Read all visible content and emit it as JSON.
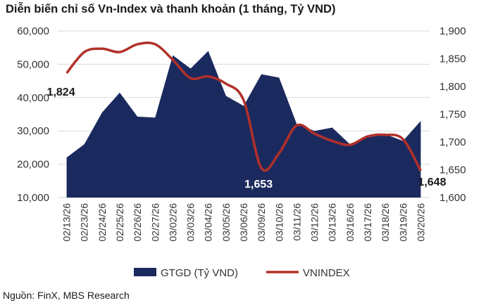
{
  "title": "Diễn biến chỉ số Vn-Index và thanh khoản (1 tháng, Tỷ VND)",
  "source": "Nguồn: FinX, MBS Research",
  "colors": {
    "area": "#1b2a5e",
    "line": "#b2302a",
    "grid": "#d9d9d9"
  },
  "chart_data": {
    "type": "area",
    "categories": [
      "02/13/26",
      "02/23/26",
      "02/24/26",
      "02/25/26",
      "02/26/26",
      "02/27/26",
      "03/02/26",
      "03/03/26",
      "03/04/26",
      "03/05/26",
      "03/06/26",
      "03/09/26",
      "03/10/26",
      "03/11/26",
      "03/12/26",
      "03/13/26",
      "03/16/26",
      "03/17/26",
      "03/18/26",
      "03/19/26",
      "03/20/26"
    ],
    "series": [
      {
        "name": "GTGD (Tỷ VND)",
        "type": "area",
        "axis": "left",
        "values": [
          22000,
          26000,
          35500,
          41500,
          34300,
          34000,
          52700,
          48700,
          54000,
          40500,
          37500,
          47000,
          46000,
          32000,
          30000,
          31000,
          26000,
          28000,
          29000,
          27000,
          33000
        ]
      },
      {
        "name": "VNINDEX",
        "type": "line",
        "axis": "right",
        "values": [
          1824,
          1862,
          1868,
          1862,
          1876,
          1876,
          1848,
          1815,
          1818,
          1805,
          1775,
          1653,
          1680,
          1730,
          1715,
          1702,
          1695,
          1710,
          1713,
          1705,
          1648
        ]
      }
    ],
    "ylim_left": [
      10000,
      60000
    ],
    "yticks_left": [
      "10,000",
      "20,000",
      "30,000",
      "40,000",
      "50,000",
      "60,000"
    ],
    "ylim_right": [
      1600,
      1900
    ],
    "yticks_right": [
      "1,600",
      "1,650",
      "1,700",
      "1,750",
      "1,800",
      "1,850",
      "1,900"
    ],
    "grid": true,
    "legend_position": "bottom",
    "annotations": [
      {
        "index": 0,
        "text": "1,824",
        "color": "#1a1a1a"
      },
      {
        "index": 11,
        "text": "1,653",
        "color": "#ffffff"
      },
      {
        "index": 20,
        "text": "1,648",
        "color": "#1a1a1a"
      }
    ]
  }
}
